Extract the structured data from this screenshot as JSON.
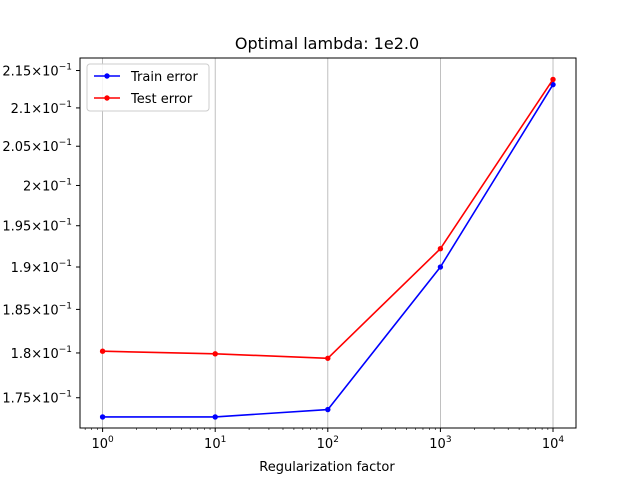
{
  "chart_data": {
    "type": "line",
    "title": "Optimal lambda: 1e2.0",
    "xlabel": "Regularization factor",
    "ylabel": "",
    "xscale": "log",
    "yscale": "log",
    "x": [
      1,
      10,
      100,
      1000,
      10000
    ],
    "x_tick_labels": [
      {
        "base": "10",
        "exp": "0"
      },
      {
        "base": "10",
        "exp": "1"
      },
      {
        "base": "10",
        "exp": "2"
      },
      {
        "base": "10",
        "exp": "3"
      },
      {
        "base": "10",
        "exp": "4"
      }
    ],
    "y_ticks": [
      0.175,
      0.18,
      0.185,
      0.19,
      0.195,
      0.2,
      0.205,
      0.21,
      0.215
    ],
    "y_tick_labels": [
      {
        "mant": "1.75",
        "base": "10",
        "exp": "−1"
      },
      {
        "mant": "1.8",
        "base": "10",
        "exp": "−1"
      },
      {
        "mant": "1.85",
        "base": "10",
        "exp": "−1"
      },
      {
        "mant": "1.9",
        "base": "10",
        "exp": "−1"
      },
      {
        "mant": "1.95",
        "base": "10",
        "exp": "−1"
      },
      {
        "mant": "2",
        "base": "10",
        "exp": "−1"
      },
      {
        "mant": "2.05",
        "base": "10",
        "exp": "−1"
      },
      {
        "mant": "2.1",
        "base": "10",
        "exp": "−1"
      },
      {
        "mant": "2.15",
        "base": "10",
        "exp": "−1"
      }
    ],
    "xlim": [
      0.63,
      16000
    ],
    "ylim": [
      0.1717,
      0.2167
    ],
    "grid": "x-only",
    "legend_position": "top-left",
    "series": [
      {
        "name": "Train error",
        "color": "#0000ff",
        "values": [
          0.1729,
          0.1729,
          0.1737,
          0.19,
          0.2131
        ]
      },
      {
        "name": "Test error",
        "color": "#ff0000",
        "values": [
          0.1802,
          0.1799,
          0.1794,
          0.1922,
          0.2138
        ]
      }
    ]
  }
}
